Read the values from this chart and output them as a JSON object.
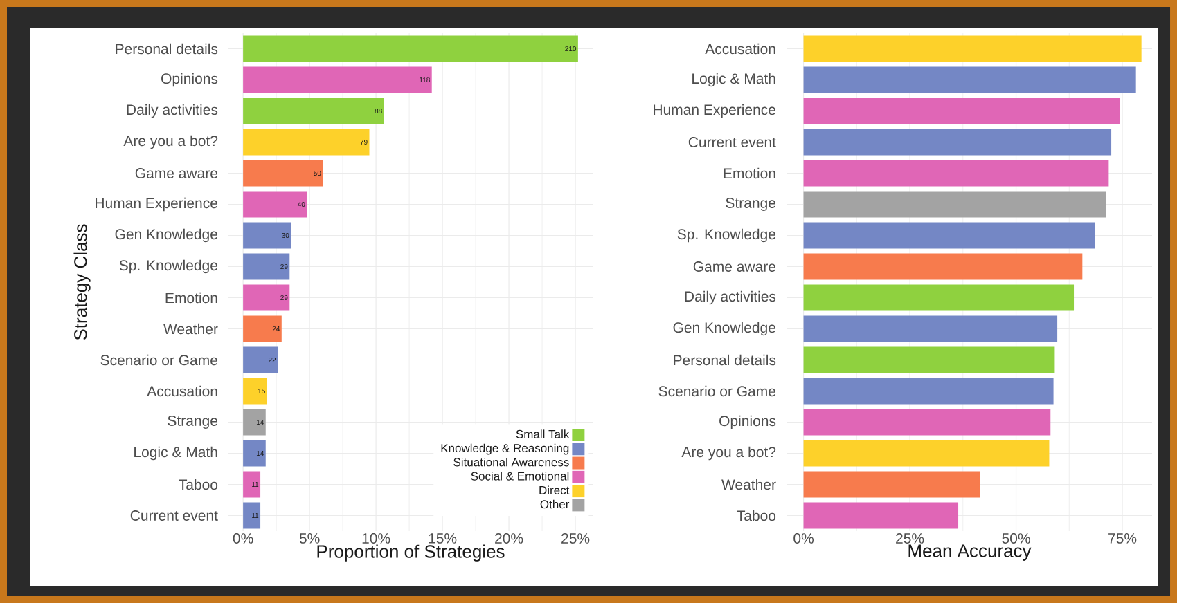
{
  "chart_data": [
    {
      "type": "bar",
      "orientation": "horizontal",
      "xlabel": "Proportion of Strategies",
      "ylabel": "Strategy Class",
      "categories": [
        "Personal details",
        "Opinions",
        "Daily activities",
        "Are you a bot?",
        "Game aware",
        "Human Experience",
        "Gen Knowledge",
        "Sp. Knowledge",
        "Emotion",
        "Weather",
        "Scenario or Game",
        "Accusation",
        "Strange",
        "Logic & Math",
        "Taboo",
        "Current event"
      ],
      "series": [
        {
          "name": "Small Talk",
          "color": "#8fd13f",
          "values": [
            25.2,
            null,
            10.6,
            null,
            null,
            null,
            null,
            null,
            null,
            null,
            null,
            null,
            null,
            null,
            null,
            null
          ]
        },
        {
          "name": "Knowledge & Reasoning",
          "color": "#7487c5",
          "values": [
            null,
            null,
            null,
            null,
            null,
            null,
            3.6,
            3.5,
            null,
            null,
            2.6,
            null,
            null,
            1.7,
            null,
            1.3
          ]
        },
        {
          "name": "Situational Awareness",
          "color": "#f77b4d",
          "values": [
            null,
            null,
            null,
            null,
            6.0,
            null,
            null,
            null,
            null,
            2.9,
            null,
            null,
            null,
            null,
            null,
            null
          ]
        },
        {
          "name": "Social & Emotional",
          "color": "#e066b6",
          "values": [
            null,
            14.2,
            null,
            null,
            null,
            4.8,
            null,
            null,
            3.5,
            null,
            null,
            null,
            null,
            null,
            1.3,
            null
          ]
        },
        {
          "name": "Direct",
          "color": "#fdd12a",
          "values": [
            null,
            null,
            null,
            9.5,
            null,
            null,
            null,
            null,
            null,
            null,
            null,
            1.8,
            null,
            null,
            null,
            null
          ]
        },
        {
          "name": "Other",
          "color": "#a3a3a3",
          "values": [
            null,
            null,
            null,
            null,
            null,
            null,
            null,
            null,
            null,
            null,
            null,
            null,
            1.7,
            null,
            null,
            null
          ]
        }
      ],
      "annotations": [
        {
          "text": "210",
          "x": 25.2,
          "y": "Personal details"
        },
        {
          "text": "118",
          "x": 14.2,
          "y": "Opinions"
        },
        {
          "text": "88",
          "x": 10.6,
          "y": "Daily activities"
        },
        {
          "text": "79",
          "x": 9.5,
          "y": "Are you a bot?"
        },
        {
          "text": "50",
          "x": 6.0,
          "y": "Game aware"
        },
        {
          "text": "40",
          "x": 4.8,
          "y": "Human Experience"
        },
        {
          "text": "30",
          "x": 3.6,
          "y": "Gen Knowledge"
        },
        {
          "text": "29",
          "x": 3.5,
          "y": "Sp. Knowledge"
        },
        {
          "text": "29",
          "x": 3.5,
          "y": "Emotion"
        },
        {
          "text": "24",
          "x": 2.9,
          "y": "Weather"
        },
        {
          "text": "22",
          "x": 2.6,
          "y": "Scenario or Game"
        },
        {
          "text": "15",
          "x": 1.8,
          "y": "Accusation"
        },
        {
          "text": "14",
          "x": 1.7,
          "y": "Strange"
        },
        {
          "text": "14",
          "x": 1.7,
          "y": "Logic & Math"
        },
        {
          "text": "11",
          "x": 1.3,
          "y": "Taboo"
        },
        {
          "text": "11",
          "x": 1.3,
          "y": "Current event"
        }
      ],
      "xlim": [
        -1.1,
        26.3
      ],
      "xticks": [
        {
          "value": 0,
          "label": "0%"
        },
        {
          "value": 5,
          "label": "5%"
        },
        {
          "value": 10,
          "label": "10%"
        },
        {
          "value": 15,
          "label": "15%"
        },
        {
          "value": 20,
          "label": "20%"
        },
        {
          "value": 25,
          "label": "25%"
        }
      ],
      "grid": true,
      "legend": "bottom right"
    },
    {
      "type": "bar",
      "orientation": "horizontal",
      "xlabel": "Mean Accuracy",
      "categories": [
        "Accusation",
        "Logic & Math",
        "Human Experience",
        "Current event",
        "Emotion",
        "Strange",
        "Sp. Knowledge",
        "Game aware",
        "Daily activities",
        "Gen Knowledge",
        "Personal details",
        "Scenario or Game",
        "Opinions",
        "Are you a bot?",
        "Weather",
        "Taboo"
      ],
      "values": [
        79.5,
        78.2,
        74.4,
        72.4,
        71.8,
        71.1,
        68.5,
        65.6,
        63.6,
        59.7,
        59.1,
        58.8,
        58.1,
        57.8,
        41.6,
        36.4
      ],
      "colors": [
        "#fdd12a",
        "#7487c5",
        "#e066b6",
        "#7487c5",
        "#e066b6",
        "#a3a3a3",
        "#7487c5",
        "#f77b4d",
        "#8fd13f",
        "#7487c5",
        "#8fd13f",
        "#7487c5",
        "#e066b6",
        "#fdd12a",
        "#f77b4d",
        "#e066b6"
      ],
      "xlim": [
        -4,
        82
      ],
      "xticks": [
        {
          "value": 0,
          "label": "0%"
        },
        {
          "value": 25,
          "label": "25%"
        },
        {
          "value": 50,
          "label": "50%"
        },
        {
          "value": 75,
          "label": "75%"
        }
      ],
      "grid": true
    }
  ]
}
